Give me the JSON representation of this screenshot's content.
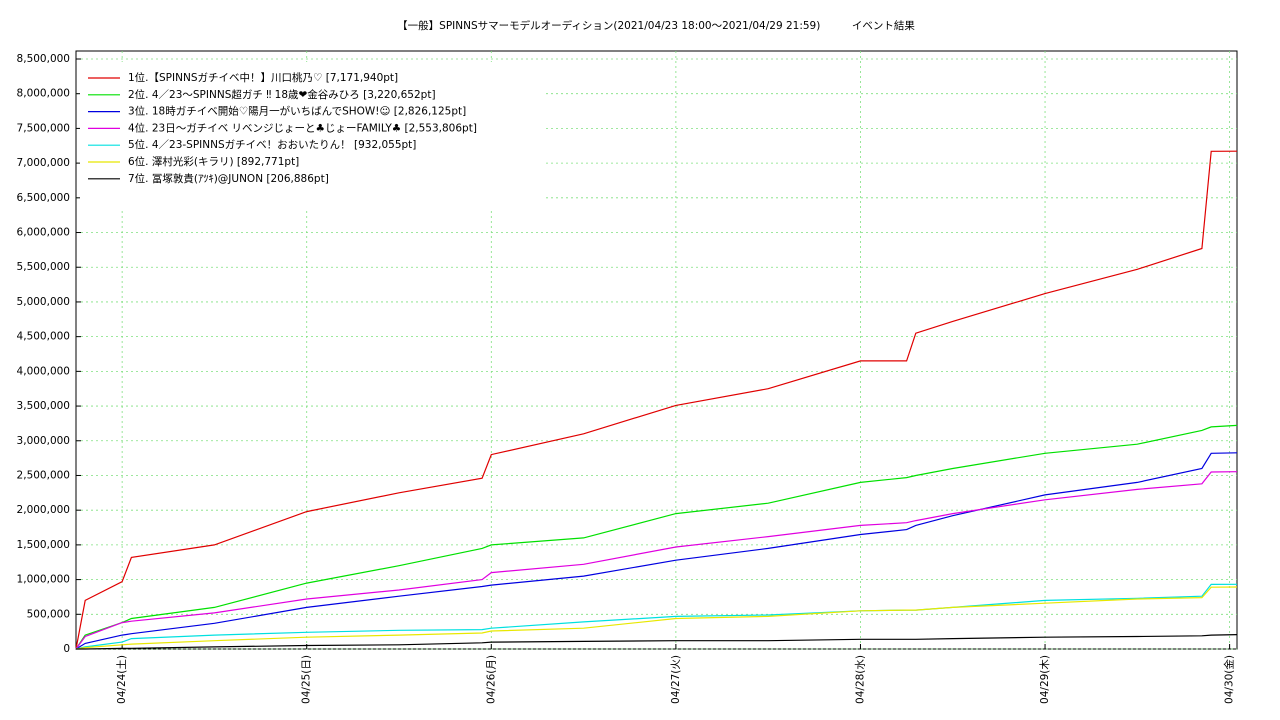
{
  "chart_data": {
    "type": "line",
    "title": "【一般】SPINNSサマーモデルオーディション(2021/04/23 18:00～2021/04/29 21:59)　　　イベント結果",
    "x": [
      23.75,
      23.8,
      24.0,
      24.05,
      24.5,
      25.0,
      25.5,
      25.95,
      26.0,
      26.5,
      27.0,
      27.5,
      28.0,
      28.25,
      28.3,
      28.5,
      29.0,
      29.5,
      29.85,
      29.9,
      30.04
    ],
    "xlim": [
      23.75,
      30.04
    ],
    "xticks": [
      {
        "value": 24,
        "label": "04/24(土)"
      },
      {
        "value": 25,
        "label": "04/25(日)"
      },
      {
        "value": 26,
        "label": "04/26(月)"
      },
      {
        "value": 27,
        "label": "04/27(火)"
      },
      {
        "value": 28,
        "label": "04/28(水)"
      },
      {
        "value": 29,
        "label": "04/29(木)"
      },
      {
        "value": 30,
        "label": "04/30(金)"
      }
    ],
    "ylim": [
      0,
      8500000
    ],
    "yticks": [
      0,
      {
        "value": 500000,
        "label": "500,000"
      },
      {
        "value": 1000000,
        "label": "1,000,000"
      },
      {
        "value": 1500000,
        "label": "1,500,000"
      },
      {
        "value": 2000000,
        "label": "2,000,000"
      },
      {
        "value": 2500000,
        "label": "2,500,000"
      },
      {
        "value": 3000000,
        "label": "3,000,000"
      },
      {
        "value": 3500000,
        "label": "3,500,000"
      },
      {
        "value": 4000000,
        "label": "4,000,000"
      },
      {
        "value": 4500000,
        "label": "4,500,000"
      },
      {
        "value": 5000000,
        "label": "5,000,000"
      },
      {
        "value": 5500000,
        "label": "5,500,000"
      },
      {
        "value": 6000000,
        "label": "6,000,000"
      },
      {
        "value": 6500000,
        "label": "6,500,000"
      },
      {
        "value": 7000000,
        "label": "7,000,000"
      },
      {
        "value": 7500000,
        "label": "7,500,000"
      },
      {
        "value": 8000000,
        "label": "8,000,000"
      },
      {
        "value": 8500000,
        "label": "8,500,000"
      }
    ],
    "grid": true,
    "legend": "upper-left",
    "series": [
      {
        "name": "1位.【SPINNSガチイベ中！】川口桃乃♡ [7,171,940pt]",
        "color": "#e00000",
        "values": [
          0,
          700000,
          970000,
          1320000,
          1500000,
          1980000,
          2250000,
          2460000,
          2800000,
          3100000,
          3510000,
          3750000,
          4150000,
          4150000,
          4550000,
          4720000,
          5120000,
          5470000,
          5770000,
          7170000,
          7171940
        ]
      },
      {
        "name": "2位. 4／23〜SPINNS超ガチ ‼ 18歳❤金谷みひろ [3,220,652pt]",
        "color": "#00e000",
        "values": [
          0,
          200000,
          380000,
          440000,
          600000,
          950000,
          1200000,
          1450000,
          1500000,
          1600000,
          1950000,
          2100000,
          2400000,
          2470000,
          2500000,
          2600000,
          2820000,
          2950000,
          3150000,
          3200000,
          3220652
        ]
      },
      {
        "name": "3位. 18時ガチイベ開始♡陽月一がいちばんでSHOW!☺ [2,826,125pt]",
        "color": "#0000e0",
        "values": [
          0,
          80000,
          200000,
          220000,
          370000,
          600000,
          760000,
          900000,
          920000,
          1050000,
          1280000,
          1450000,
          1650000,
          1720000,
          1780000,
          1920000,
          2220000,
          2400000,
          2600000,
          2820000,
          2826125
        ]
      },
      {
        "name": "4位. 23日〜ガチイベ リベンジじょーと♣じょーFAMILY♣ [2,553,806pt]",
        "color": "#e000e0",
        "values": [
          0,
          180000,
          380000,
          400000,
          520000,
          720000,
          850000,
          1000000,
          1100000,
          1220000,
          1470000,
          1620000,
          1780000,
          1820000,
          1850000,
          1950000,
          2150000,
          2300000,
          2380000,
          2550000,
          2553806
        ]
      },
      {
        "name": "5位. 4／23-SPINNSガチイベ！おおいたりん！ [932,055pt]",
        "color": "#00e0e0",
        "values": [
          0,
          30000,
          100000,
          150000,
          200000,
          240000,
          270000,
          280000,
          300000,
          390000,
          470000,
          490000,
          550000,
          560000,
          560000,
          600000,
          700000,
          730000,
          760000,
          930000,
          932055
        ]
      },
      {
        "name": "6位. 澤村光彩(キラリ) [892,771pt]",
        "color": "#e8e800",
        "values": [
          0,
          20000,
          60000,
          70000,
          120000,
          170000,
          200000,
          230000,
          260000,
          300000,
          440000,
          470000,
          550000,
          560000,
          560000,
          600000,
          660000,
          720000,
          740000,
          890000,
          892771
        ]
      },
      {
        "name": "7位. 冨塚敦貴(ｱﾂｷ)@JUNON [206,886pt]",
        "color": "#000000",
        "values": [
          0,
          0,
          10000,
          10000,
          30000,
          50000,
          60000,
          90000,
          100000,
          110000,
          120000,
          120000,
          140000,
          140000,
          140000,
          150000,
          170000,
          180000,
          190000,
          200000,
          206886
        ]
      }
    ]
  }
}
